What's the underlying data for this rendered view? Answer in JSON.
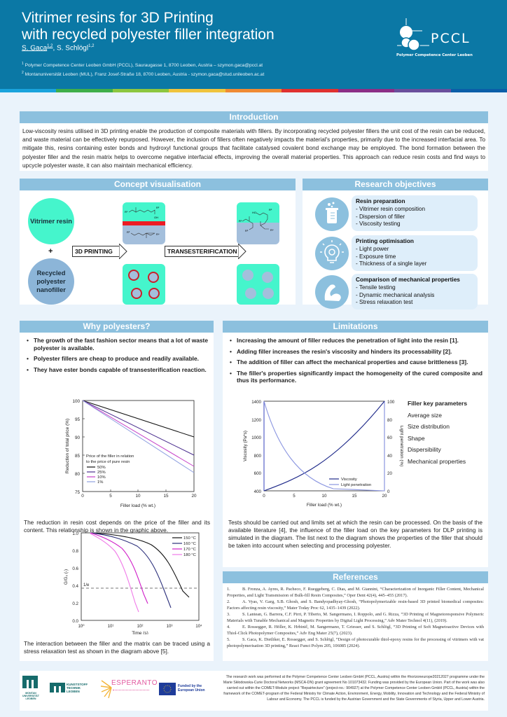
{
  "header": {
    "title_line1": "Vitrimer resins for 3D Printing",
    "title_line2": "with recycled polyester filler integration",
    "author1": "S. Gaca",
    "author1_sup": "1,2",
    "author_sep": ", S. Schlögl",
    "author2_sup": "1,2",
    "affil1_sup": "1",
    "affil1": " Polymer Competence  Center Leoben GmbH (PCCL), Sauraugasse 1, 8700 Leoben, Austria – szymon.gaca@pccl.at",
    "affil2_sup": "2",
    "affil2": " Montanuniversität Leoben (MUL), Franz Josef-Straße 18, 8700 Leoben, Austria - szymon.gaca@stud.unileoben.ac.at",
    "logo_text": "PCCL",
    "logo_subtitle": "Polymer Competence Center Leoben",
    "stripe_colors": [
      "#1aa3dc",
      "#3fae49",
      "#8dc63f",
      "#f0c33c",
      "#f08a33",
      "#e0312f",
      "#8c2e86",
      "#6a4f9c",
      "#0b5ea8"
    ]
  },
  "introduction": {
    "heading": "Introduction",
    "text": "Low-viscosity resins utilised in 3D printing enable the production of composite materials with fillers. By incorporating recycled polyester fillers the unit cost of the resin can be reduced, and waste material can be effectively repurposed. However, the inclusion of fillers often negatively impacts the material's properties, primarily due to the increased interfacial area. To mitigate this, resins containing ester bonds and hydroxyl functional groups that facilitate catalysed covalent bond exchange may be employed. The bond formation between the polyester filler and the resin matrix helps to overcome negative interfacial effects, improving the overall material properties. This approach can reduce resin costs and find ways to upcycle polyester waste, it can also maintain mechanical efficiency."
  },
  "concept": {
    "heading": "Concept visualisation",
    "resin_label": "Vitrimer resin",
    "plus": "+",
    "filler_label": "Recycled polyester nanofiller",
    "arrow1": "3D PRINTING",
    "arrow2": "TRANSESTERIFICATION",
    "colors": {
      "resin": "#45f5cc",
      "filler": "#a4bfdc",
      "interface": "#ec1c24"
    }
  },
  "objectives": {
    "heading": "Research objectives",
    "items": [
      {
        "icon": "beaker-icon",
        "title": "Resin preparation",
        "points": [
          "- Vitrimer resin composition",
          "- Dispersion of filler",
          "- Viscosity testing"
        ]
      },
      {
        "icon": "lightbulb-gear-icon",
        "title": "Printing optimisation",
        "points": [
          "- Light power",
          "- Exposure time",
          "- Thickness of a single layer"
        ]
      },
      {
        "icon": "flexed-arm-icon",
        "title": "Comparison of mechanical properties",
        "points": [
          "- Tensile testing",
          "- Dynamic mechanical analysis",
          "- Stress relaxation test"
        ]
      }
    ]
  },
  "why": {
    "heading": "Why polyesters?",
    "bullets": [
      "The growth of the fast fashion sector means that a lot of waste polyester is available.",
      "Polyester fillers are cheap to produce and readily available.",
      "They have ester bonds capable of transesterification reaction."
    ],
    "caption1": "The reduction in resin cost depends on the price of the filler and its content. This relationship is shown in the graphic above.",
    "caption2": "The interaction between the filler and the matrix can be traced using a stress relaxation test as shown in the diagram above [5]."
  },
  "limitations": {
    "heading": "Limitations",
    "bullets": [
      "Increasing the amount of filler reduces the penetration of light into the resin [1].",
      "Adding filler increases the resin's viscosity and hinders its processability [2].",
      "The addition of filler can affect the mechanical properties and cause brittleness [3].",
      "The filler's properties significantly impact the homogeneity of the cured composite and thus its performance."
    ],
    "params_title": "Filler key parameters",
    "params": [
      "Average size",
      "Size distribution",
      "Shape",
      "Dispersibility",
      "Mechanical properties"
    ],
    "text": "Tests should be carried out and limits set at which the resin can be processed. On the basis of the available literature [4], the influence of the filler load on the key parameters for DLP printing is simulated in the diagram. The list next to the diagram shows the properties of the filler that should be taken into account when selecting and processing polyester."
  },
  "references": {
    "heading": "References",
    "items": [
      {
        "n": "1.",
        "text": "B. Fronza, A. Ayres, R. Pacheco, F. Rueggeberg, C. Dias, and M. Giannini, “Characterization of Inorganic Filler Content, Mechanical Properties, and Light Transmission of Bulk-fill Resin Composites,” Oper Dent 42(4), 445–455 (2017)."
      },
      {
        "n": "2.",
        "text": "A. Vyas, V. Garg, S.B. Ghosh, and S. Bandyopadhyay-Ghosh, “Photopolymerizable resin-based 3D printed biomedical composites: Factors affecting resin viscosity,” Mater Today Proc 62, 1435–1439 (2022)."
      },
      {
        "n": "3.",
        "text": "S. Lantean, G. Barrera, C.F. Pirri, P. Tiberto, M. Sangermano, I. Roppolo, and G. Rizza, “3D Printing of Magnetoresponsive Polymeric Materials with Tunable Mechanical and Magnetic Properties by Digital Light Processing,” Adv Mater Technol 4(11), (2019)."
      },
      {
        "n": "4.",
        "text": "E. Rossegger, R. Höller, K. Hrbinič, M. Sangermano, T. Griesser, and S. Schlögl, “3D Printing of Soft Magnetoactive Devices with Thiol-Click Photopolymer Composites,” Adv Eng Mater 25(7), (2023)."
      },
      {
        "n": "5.",
        "text": "S. Gaca, K. Dietliker, E. Rossegger, and S. Schlögl, “Design of photocurable thiol-epoxy resins for the processing of vitrimers with vat photopolymerisation 3D printing,” React Funct Polym 205, 106085 (2024)."
      }
    ]
  },
  "footer": {
    "logos": [
      {
        "name": "montanuniversitat-logo",
        "text": "MONTAN UNIVERSITÄT LEOBEN"
      },
      {
        "name": "kunststofftechnik-logo",
        "text": "KUNSTSTOFF TECHNIK LEOBEN"
      },
      {
        "name": "esperanto-logo",
        "text": "ESPERANTO"
      },
      {
        "name": "eu-logo",
        "text": "Funded by the European Union"
      }
    ],
    "funding_text": "The research work was performed at the Polymer Competence Center Leoben GmbH (PCCL, Austria) within the #horizoneurope20212027 programme under the Marie Skłodowska-Curie Doctoral Networks (MSCA-DN) grant agreement No 101073432. Funding was provided by the European Union. Part of the work was also carried out within the COMET-Module project \"Repairtecture\" (project-no.: 904927) at the Polymer Competence Center Leoben GmbH (PCCL, Austria) within the framework of the COMET-program of the Federal Ministry for Climate Action, Environment, Energy, Mobility, Innovation and Technology and the Federal Ministry of Labour and Economy. The PCCL is funded by the Austrian Government and the State Governments of Styria, Upper and Lower Austria."
  },
  "chart_data": [
    {
      "type": "line",
      "title": "",
      "xlabel": "Filler load (% wt.)",
      "ylabel": "Reduction of total price (%)",
      "xlim": [
        0,
        20
      ],
      "ylim": [
        75,
        100
      ],
      "xticks": [
        0,
        5,
        10,
        15,
        20
      ],
      "yticks": [
        75,
        80,
        85,
        90,
        95,
        100
      ],
      "legend_title": "Price of the filler in relation to the price of pure resin",
      "legend_position": "lower left",
      "x": [
        0,
        20
      ],
      "series": [
        {
          "name": "50%",
          "color": "#111111",
          "values": [
            100,
            90
          ]
        },
        {
          "name": "25%",
          "color": "#4b2f8f",
          "values": [
            100,
            85
          ]
        },
        {
          "name": "10%",
          "color": "#c540c8",
          "values": [
            100,
            82
          ]
        },
        {
          "name": "1%",
          "color": "#8fa0e0",
          "values": [
            100,
            80.2
          ]
        }
      ]
    },
    {
      "type": "line",
      "title": "",
      "xlabel": "Time (s)",
      "ylabel": "G/G0 (-)",
      "xscale": "log",
      "xlim": [
        1,
        10000
      ],
      "ylim": [
        0,
        1.0
      ],
      "xticks": [
        "10^0",
        "10^1",
        "10^2",
        "10^3",
        "10^4"
      ],
      "yticks": [
        0.0,
        0.2,
        0.4,
        0.6,
        0.8,
        1.0
      ],
      "annotations": [
        {
          "text": "1/e",
          "y": 0.368,
          "style": "dashed horizontal line"
        }
      ],
      "legend_position": "upper right",
      "series": [
        {
          "name": "150 °C",
          "color": "#111111",
          "x": [
            2,
            10,
            50,
            200,
            500,
            1000,
            2000,
            3000
          ],
          "values": [
            1.0,
            0.98,
            0.93,
            0.85,
            0.72,
            0.57,
            0.4,
            0.31
          ]
        },
        {
          "name": "160 °C",
          "color": "#2a2e7a",
          "x": [
            2,
            10,
            50,
            100,
            200,
            400,
            800,
            1800
          ],
          "values": [
            1.0,
            0.97,
            0.9,
            0.83,
            0.71,
            0.55,
            0.35,
            0.15
          ]
        },
        {
          "name": "170 °C",
          "color": "#d020c8",
          "x": [
            2,
            10,
            30,
            60,
            120,
            250,
            400,
            650
          ],
          "values": [
            1.0,
            0.94,
            0.87,
            0.8,
            0.67,
            0.47,
            0.33,
            0.2
          ]
        },
        {
          "name": "180 °C",
          "color": "#f07ae8",
          "x": [
            2,
            10,
            30,
            60,
            120,
            250,
            400,
            600
          ],
          "values": [
            0.99,
            0.91,
            0.82,
            0.72,
            0.56,
            0.35,
            0.2,
            0.1
          ]
        }
      ]
    },
    {
      "type": "line",
      "title": "",
      "xlabel": "Filler load (% wt.)",
      "ylabel": "Viscosity (Pa*s)",
      "ylabel_right": "Light penetration (%)",
      "xlim": [
        0,
        20
      ],
      "ylim": [
        400,
        1400
      ],
      "ylim_right": [
        0,
        100
      ],
      "xticks": [
        0,
        5,
        10,
        15,
        20
      ],
      "yticks": [
        400,
        600,
        800,
        1000,
        1200,
        1400
      ],
      "yticks_right": [
        0,
        20,
        40,
        60,
        80,
        100
      ],
      "legend_position": "lower right",
      "x": [
        0,
        2.5,
        5,
        7.5,
        10,
        12.5,
        15,
        17.5,
        20
      ],
      "series": [
        {
          "name": "Viscosity",
          "axis": "left",
          "color": "#1f2a8a",
          "values": [
            400,
            470,
            545,
            630,
            730,
            850,
            990,
            1180,
            1400
          ]
        },
        {
          "name": "Light penetration",
          "axis": "right",
          "color": "#8a95e0",
          "values": [
            100,
            55,
            30,
            16,
            9,
            5,
            2.5,
            1,
            0
          ]
        }
      ]
    }
  ]
}
